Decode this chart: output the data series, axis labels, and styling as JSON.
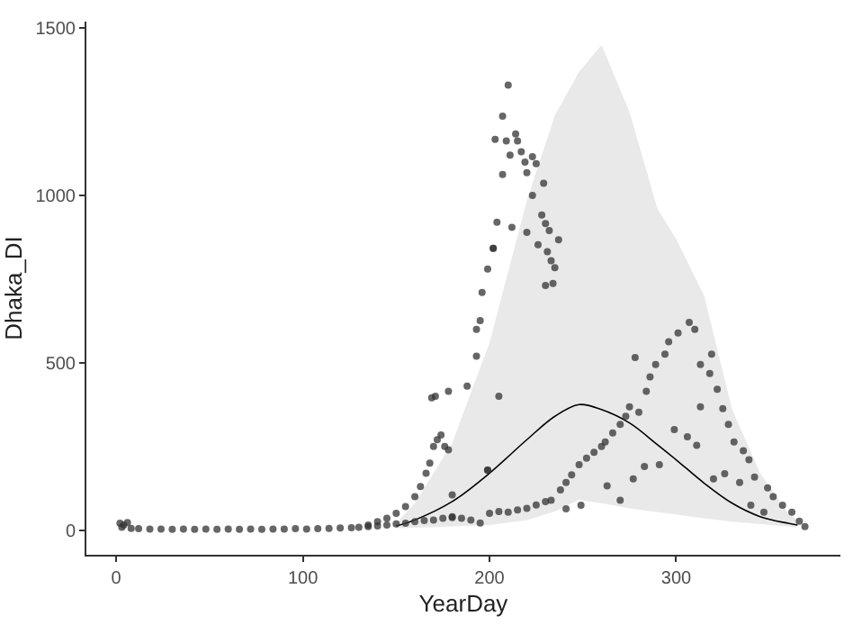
{
  "chart_data": {
    "type": "scatter",
    "xlabel": "YearDay",
    "ylabel": "Dhaka_DI",
    "xlim": [
      -16,
      388
    ],
    "ylim": [
      -74,
      1520
    ],
    "xticks": [
      0,
      100,
      200,
      300
    ],
    "yticks": [
      0,
      500,
      1000,
      1500
    ],
    "series": [
      {
        "type": "line",
        "marker": "none",
        "color": "#000000",
        "x": [
          150,
          160,
          180,
          200,
          220,
          235,
          248,
          260,
          275,
          290,
          300,
          315,
          330,
          345,
          360,
          365
        ],
        "values": [
          12,
          30,
          85,
          170,
          270,
          340,
          375,
          360,
          320,
          255,
          210,
          140,
          80,
          40,
          20,
          15
        ],
        "lower": [
          5,
          8,
          12,
          15,
          30,
          55,
          90,
          80,
          65,
          52,
          45,
          35,
          25,
          17,
          10,
          8
        ],
        "upper": [
          20,
          80,
          260,
          560,
          984,
          1240,
          1370,
          1450,
          1250,
          960,
          870,
          700,
          360,
          170,
          50,
          30
        ]
      },
      {
        "marker": "circle",
        "color": "#333333",
        "x": [
          2,
          4,
          6,
          3,
          8,
          12,
          18,
          24,
          30,
          36,
          42,
          48,
          54,
          60,
          66,
          72,
          78,
          84,
          90,
          96,
          102,
          108,
          114,
          120,
          126,
          130,
          135,
          140,
          145,
          150,
          155,
          160,
          165,
          170,
          175,
          180,
          185,
          190,
          195,
          200,
          205,
          210,
          215,
          220,
          225,
          230,
          233,
          238,
          241,
          244,
          248,
          252,
          256,
          260,
          262,
          266,
          270,
          273,
          275,
          280,
          135,
          140,
          145,
          150,
          155,
          160,
          163,
          166,
          168,
          170,
          172,
          174,
          176,
          178,
          180,
          169,
          171,
          178,
          188,
          193,
          195,
          193,
          196,
          199,
          202,
          202,
          204,
          203,
          199,
          207,
          210,
          209,
          214,
          215,
          211,
          217,
          219,
          223,
          225,
          220,
          207,
          229,
          223,
          228,
          230,
          232,
          237,
          212,
          220,
          226,
          231,
          233,
          235,
          230,
          234,
          205,
          199,
          180,
          307,
          310,
          301,
          296,
          294,
          289,
          286,
          278,
          284,
          313,
          319,
          318,
          322,
          325,
          328,
          331,
          336,
          339,
          342,
          349,
          352,
          357,
          362,
          366,
          369,
          299,
          306,
          311,
          313,
          291,
          283,
          277,
          270,
          263,
          249,
          241,
          320,
          326,
          334,
          340,
          347
        ],
        "values": [
          20,
          15,
          22,
          8,
          5,
          4,
          3,
          3,
          2,
          3,
          2,
          3,
          2,
          3,
          2,
          3,
          2,
          3,
          3,
          4,
          3,
          4,
          5,
          6,
          7,
          8,
          10,
          12,
          15,
          18,
          20,
          25,
          28,
          30,
          35,
          40,
          35,
          30,
          21,
          50,
          55,
          53,
          60,
          65,
          75,
          85,
          89,
          120,
          142,
          165,
          195,
          215,
          232,
          250,
          263,
          290,
          316,
          340,
          368,
          352,
          15,
          25,
          35,
          50,
          70,
          100,
          130,
          170,
          200,
          250,
          270,
          284,
          250,
          240,
          105,
          395,
          400,
          415,
          430,
          600,
          626,
          520,
          710,
          780,
          842,
          842,
          920,
          1168,
          179,
          1237,
          1330,
          1163,
          1184,
          1163,
          1121,
          1131,
          1100,
          1116,
          1095,
          1068,
          1063,
          1037,
          1000,
          942,
          916,
          895,
          868,
          905,
          890,
          853,
          832,
          805,
          784,
          731,
          737,
          400,
          179,
          37,
          621,
          600,
          589,
          563,
          526,
          495,
          458,
          516,
          415,
          495,
          526,
          468,
          421,
          363,
          316,
          263,
          237,
          210,
          158,
          126,
          100,
          74,
          53,
          26,
          10,
          300,
          279,
          253,
          368,
          195,
          190,
          153,
          89,
          132,
          74,
          63,
          153,
          168,
          142,
          74,
          53
        ]
      }
    ]
  }
}
